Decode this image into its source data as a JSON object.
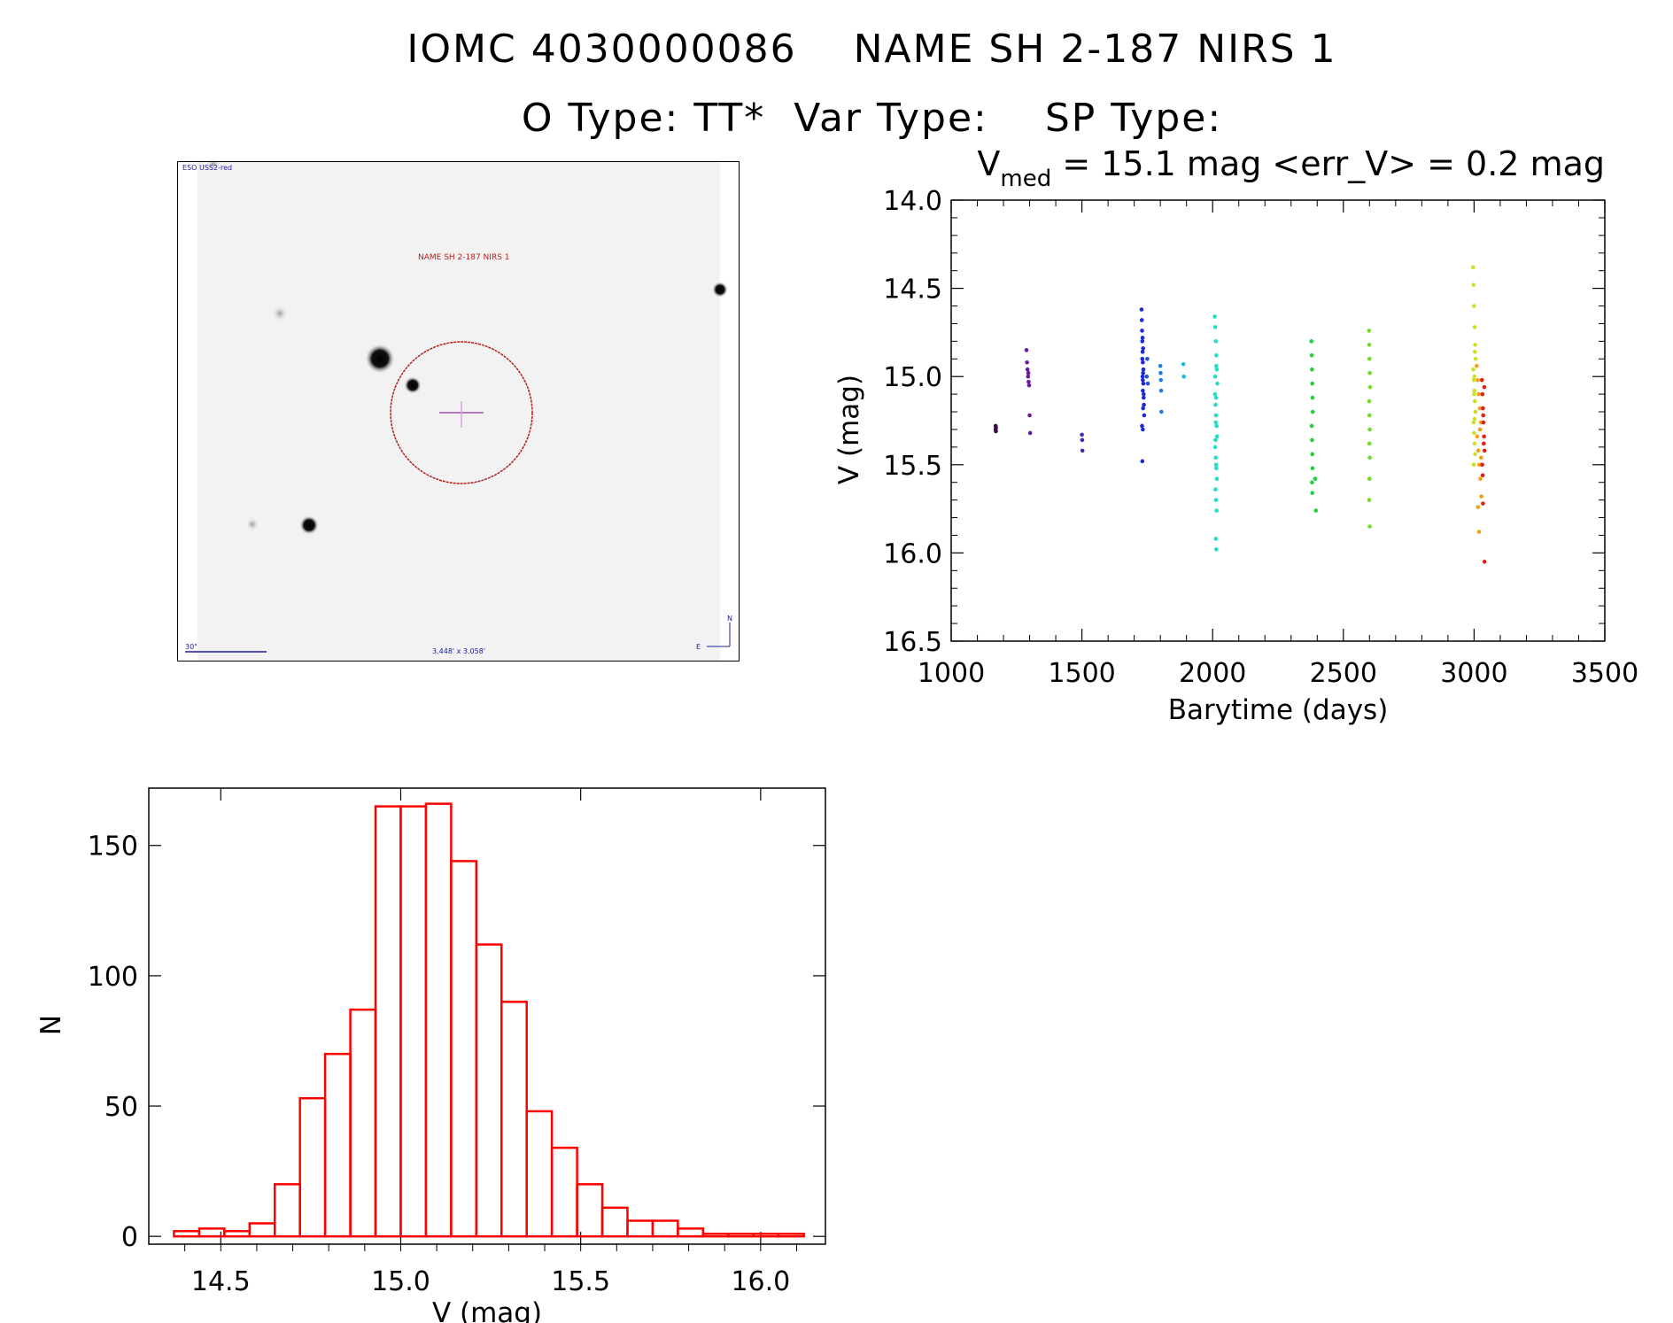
{
  "header": {
    "title_line1": "IOMC 4030000086    NAME SH 2-187 NIRS 1",
    "title_line2": "O Type: TT*  Var Type:    SP Type:"
  },
  "finder_chart": {
    "survey_label": "ESO USS2-red",
    "object_label": "NAME SH 2-187 NIRS 1",
    "scale_label": "30\"",
    "fov_label": "3.448' x 3.058'",
    "north_label": "N",
    "east_label": "E",
    "colors": {
      "label_blue": "#1a1aa0",
      "label_red": "#b02020",
      "circle": "#b02020",
      "cross": "#c060c0"
    }
  },
  "chart_data": [
    {
      "type": "scatter",
      "title_prefix": "V",
      "title_subscript": "med",
      "title_rest": " = 15.1 mag <err_V> = 0.2 mag",
      "xlabel": "Barytime (days)",
      "ylabel": "V (mag)",
      "xlim": [
        1000,
        3500
      ],
      "ylim": [
        16.5,
        14.0
      ],
      "y_inverted": true,
      "xticks": [
        1000,
        1500,
        2000,
        2500,
        3000,
        3500
      ],
      "yticks": [
        14.0,
        14.5,
        15.0,
        15.5,
        16.0,
        16.5
      ],
      "xtick_labels": [
        "1000",
        "1500",
        "2000",
        "2500",
        "3000",
        "3500"
      ],
      "ytick_labels": [
        "14.0",
        "14.5",
        "15.0",
        "15.5",
        "16.0",
        "16.5"
      ],
      "series": [
        {
          "name": "t1170",
          "color": "#3a0a4a",
          "x": [
            1170,
            1170,
            1171,
            1171
          ],
          "y": [
            15.28,
            15.3,
            15.29,
            15.31
          ]
        },
        {
          "name": "t1290",
          "color": "#6a1aa0",
          "x": [
            1288,
            1290,
            1292,
            1294,
            1296,
            1298,
            1300,
            1302,
            1295
          ],
          "y": [
            14.85,
            14.92,
            14.96,
            15.0,
            15.03,
            15.05,
            15.22,
            15.32,
            14.98
          ]
        },
        {
          "name": "t1500",
          "color": "#4a28b0",
          "x": [
            1500,
            1501,
            1502
          ],
          "y": [
            15.33,
            15.36,
            15.42
          ]
        },
        {
          "name": "t1730",
          "color": "#1a2ad8",
          "x": [
            1728,
            1729,
            1730,
            1731,
            1732,
            1733,
            1734,
            1735,
            1736,
            1737,
            1738,
            1730,
            1731,
            1732,
            1733,
            1734,
            1735,
            1736,
            1732,
            1733,
            1734,
            1731,
            1733
          ],
          "y": [
            14.62,
            14.68,
            14.74,
            14.8,
            14.86,
            14.92,
            14.98,
            15.04,
            15.1,
            15.16,
            15.22,
            15.28,
            14.9,
            15.0,
            15.08,
            14.84,
            14.96,
            15.12,
            14.78,
            15.02,
            15.18,
            15.48,
            15.3
          ]
        },
        {
          "name": "t1750",
          "color": "#2050e0",
          "x": [
            1750,
            1752,
            1748
          ],
          "y": [
            14.9,
            15.04,
            15.0
          ]
        },
        {
          "name": "t1800",
          "color": "#1a80e8",
          "x": [
            1800,
            1801,
            1802,
            1803,
            1804
          ],
          "y": [
            14.94,
            14.98,
            15.02,
            15.08,
            15.2
          ]
        },
        {
          "name": "t1890",
          "color": "#18b8e8",
          "x": [
            1888,
            1890
          ],
          "y": [
            14.93,
            15.0
          ]
        },
        {
          "name": "t2010",
          "color": "#20e0c0",
          "x": [
            2008,
            2010,
            2012,
            2014,
            2016,
            2018,
            2009,
            2011,
            2013,
            2015,
            2017,
            2010,
            2012,
            2014,
            2016,
            2011,
            2013,
            2015,
            2012,
            2014,
            2010,
            2013,
            2012,
            2011,
            2014,
            2013
          ],
          "y": [
            14.66,
            14.72,
            14.8,
            14.88,
            14.96,
            15.04,
            15.1,
            15.16,
            15.22,
            15.28,
            15.34,
            15.4,
            15.46,
            15.52,
            15.58,
            15.64,
            15.7,
            15.76,
            15.92,
            15.98,
            15.0,
            15.12,
            15.26,
            15.36,
            14.94,
            15.5
          ]
        },
        {
          "name": "t2380",
          "color": "#20d040",
          "x": [
            2378,
            2379,
            2380,
            2381,
            2382,
            2383,
            2379,
            2380,
            2381,
            2382,
            2380,
            2381,
            2392,
            2395
          ],
          "y": [
            14.8,
            14.88,
            14.96,
            15.04,
            15.12,
            15.2,
            15.28,
            15.36,
            15.44,
            15.52,
            15.6,
            15.66,
            15.58,
            15.76
          ]
        },
        {
          "name": "t2600",
          "color": "#6ae020",
          "x": [
            2598,
            2599,
            2600,
            2601,
            2602,
            2599,
            2600,
            2601,
            2600,
            2601,
            2600,
            2599,
            2601
          ],
          "y": [
            14.74,
            14.82,
            14.9,
            14.98,
            15.06,
            15.14,
            15.22,
            15.3,
            15.38,
            15.46,
            15.58,
            15.7,
            15.85
          ]
        },
        {
          "name": "t3000",
          "color": "#d0e020",
          "x": [
            2996,
            2998,
            3000,
            3002,
            3004,
            3006,
            2997,
            2999,
            3001,
            3003,
            3005,
            2998,
            3000,
            3002,
            3004,
            2999,
            3001,
            3003,
            3000,
            3002
          ],
          "y": [
            14.38,
            14.48,
            14.6,
            14.72,
            14.82,
            14.9,
            14.96,
            15.02,
            15.08,
            15.14,
            15.2,
            15.26,
            15.32,
            15.38,
            15.44,
            15.5,
            15.0,
            14.86,
            15.1,
            15.24
          ]
        },
        {
          "name": "t3020",
          "color": "#f0a010",
          "x": [
            3010,
            3014,
            3018,
            3022,
            3026,
            3012,
            3016,
            3020,
            3024,
            3028,
            3015,
            3019,
            3023,
            3027
          ],
          "y": [
            14.94,
            15.02,
            15.1,
            15.18,
            15.26,
            15.34,
            15.42,
            15.5,
            15.58,
            15.68,
            15.74,
            15.88,
            15.3,
            15.46
          ]
        },
        {
          "name": "t3035",
          "color": "#e02010",
          "x": [
            3030,
            3032,
            3034,
            3036,
            3038,
            3040,
            3031,
            3033,
            3035,
            3037,
            3039,
            3034,
            3040
          ],
          "y": [
            15.02,
            15.1,
            15.18,
            15.26,
            15.34,
            15.42,
            15.5,
            15.56,
            15.22,
            15.38,
            15.06,
            15.72,
            16.05
          ]
        }
      ]
    },
    {
      "type": "bar",
      "style": "step-histogram",
      "color": "#ff0000",
      "xlabel": "V (mag)",
      "ylabel": "N",
      "xlim": [
        14.3,
        16.18
      ],
      "ylim": [
        -3,
        172
      ],
      "xticks": [
        14.5,
        15.0,
        15.5,
        16.0
      ],
      "yticks": [
        0,
        50,
        100,
        150
      ],
      "xtick_labels": [
        "14.5",
        "15.0",
        "15.5",
        "16.0"
      ],
      "ytick_labels": [
        "0",
        "50",
        "100",
        "150"
      ],
      "bin_width": 0.07,
      "bin_starts": [
        14.37,
        14.44,
        14.51,
        14.58,
        14.65,
        14.72,
        14.79,
        14.86,
        14.93,
        15.0,
        15.07,
        15.14,
        15.21,
        15.28,
        15.35,
        15.42,
        15.49,
        15.56,
        15.63,
        15.7,
        15.77,
        15.84,
        15.91,
        15.98,
        16.05
      ],
      "values": [
        2,
        3,
        2,
        5,
        20,
        53,
        70,
        87,
        165,
        165,
        166,
        144,
        112,
        90,
        48,
        34,
        20,
        11,
        6,
        6,
        3,
        1,
        1,
        1,
        1
      ]
    }
  ]
}
